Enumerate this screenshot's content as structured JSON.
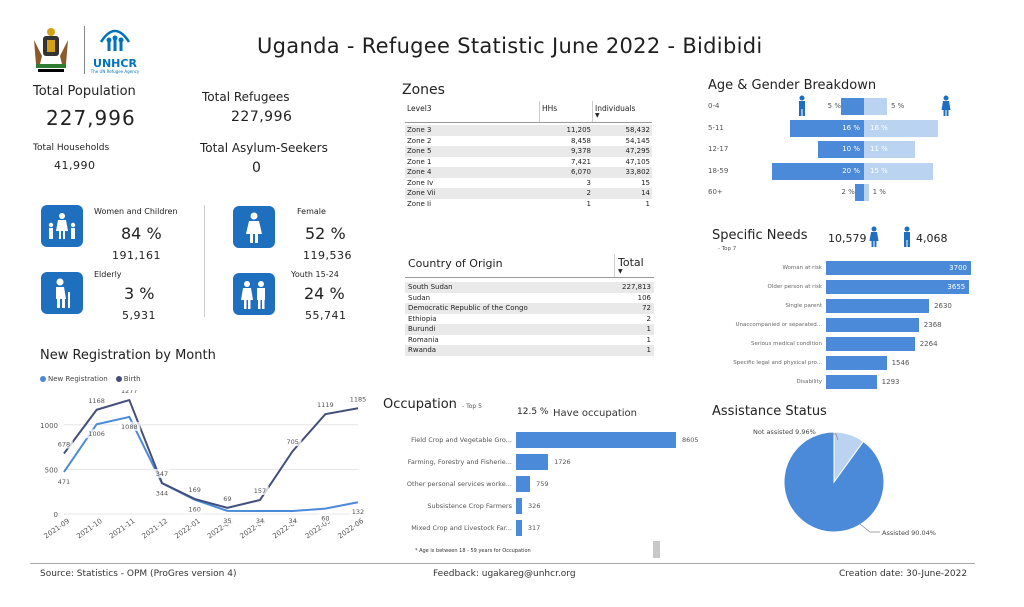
{
  "title": "Uganda - Refugee Statistic June 2022 - Bidibidi",
  "logo": {
    "unhcr_text": "UNHCR",
    "unhcr_sub": "The UN Refugee Agency"
  },
  "kpis": {
    "total_population_label": "Total Population",
    "total_population": "227,996",
    "total_refugees_label": "Total Refugees",
    "total_refugees": "227,996",
    "total_households_label": "Total Households",
    "total_households": "41,990",
    "total_asylum_label": "Total Asylum-Seekers",
    "total_asylum": "0"
  },
  "demographics": [
    {
      "label": "Women and Children",
      "pct": "84 %",
      "count": "191,161",
      "icon": "women-children-icon"
    },
    {
      "label": "Female",
      "pct": "52 %",
      "count": "119,536",
      "icon": "female-icon"
    },
    {
      "label": "Elderly",
      "pct": "3 %",
      "count": "5,931",
      "icon": "elderly-icon"
    },
    {
      "label": "Youth 15-24",
      "pct": "24 %",
      "count": "55,741",
      "icon": "youth-icon"
    }
  ],
  "zones": {
    "title": "Zones",
    "headers": [
      "Level3",
      "HHs",
      "Individuals"
    ],
    "rows": [
      [
        "Zone 3",
        "11,205",
        "58,432"
      ],
      [
        "Zone 2",
        "8,458",
        "54,145"
      ],
      [
        "Zone 5",
        "9,378",
        "47,295"
      ],
      [
        "Zone 1",
        "7,421",
        "47,105"
      ],
      [
        "Zone 4",
        "6,070",
        "33,802"
      ],
      [
        "Zone Iv",
        "3",
        "15"
      ],
      [
        "Zone Vii",
        "2",
        "14"
      ],
      [
        "Zone Ii",
        "1",
        "1"
      ]
    ]
  },
  "origin": {
    "headers": [
      "Country of Origin",
      "Total"
    ],
    "rows": [
      [
        "South Sudan",
        "227,813"
      ],
      [
        "Sudan",
        "106"
      ],
      [
        "Democratic Republic of the Congo",
        "72"
      ],
      [
        "Ethiopia",
        "2"
      ],
      [
        "Burundi",
        "1"
      ],
      [
        "Romania",
        "1"
      ],
      [
        "Rwanda",
        "1"
      ]
    ]
  },
  "age_gender": {
    "title": "Age & Gender Breakdown",
    "groups": [
      {
        "label": "0-4",
        "male": "5 %",
        "female": "5 %"
      },
      {
        "label": "5-11",
        "male": "16 %",
        "female": "16 %"
      },
      {
        "label": "12-17",
        "male": "10 %",
        "female": "11 %"
      },
      {
        "label": "18-59",
        "male": "20 %",
        "female": "15 %"
      },
      {
        "label": "60+",
        "male": "2 %",
        "female": "1 %"
      }
    ],
    "male_values": [
      5,
      16,
      10,
      20,
      2
    ],
    "female_values": [
      5,
      16,
      11,
      15,
      1
    ],
    "male_color": "#4a8ad8",
    "female_color": "#b9d3f0"
  },
  "specific_needs": {
    "title": "Specific Needs",
    "subtitle": "- Top 7",
    "female_total": "10,579",
    "male_total": "4,068",
    "items": [
      {
        "label": "Woman at risk",
        "value": 3700,
        "text": "3700"
      },
      {
        "label": "Older person at risk",
        "value": 3655,
        "text": "3655"
      },
      {
        "label": "Single parent",
        "value": 2630,
        "text": "2630"
      },
      {
        "label": "Unaccompanied or separated...",
        "value": 2368,
        "text": "2368"
      },
      {
        "label": "Serious medical condition",
        "value": 2264,
        "text": "2264"
      },
      {
        "label": "Specific legal and physical pro...",
        "value": 1546,
        "text": "1546"
      },
      {
        "label": "Disability",
        "value": 1293,
        "text": "1293"
      }
    ]
  },
  "registration": {
    "title": "New Registration by Month",
    "legend_new": "New Registration",
    "legend_birth": "Birth",
    "color_new": "#4a8ad8",
    "color_birth": "#44507a"
  },
  "chart_data": [
    {
      "type": "line",
      "title": "New Registration by Month",
      "x": [
        "2021-09",
        "2021-10",
        "2021-11",
        "2021-12",
        "2022-01",
        "2022-02",
        "2022-03",
        "2022-04",
        "2022-05",
        "2022-06"
      ],
      "series": [
        {
          "name": "New Registration",
          "values": [
            471,
            1006,
            1088,
            344,
            160,
            35,
            34,
            34,
            60,
            132
          ]
        },
        {
          "name": "Birth",
          "values": [
            678,
            1168,
            1277,
            347,
            169,
            69,
            157,
            705,
            1119,
            1185
          ]
        }
      ],
      "ylim": [
        0,
        1300
      ],
      "yticks": [
        "0",
        "500",
        "1000"
      ]
    },
    {
      "type": "bar",
      "title": "Occupation",
      "categories": [
        "Field Crop and Vegetable Gro...",
        "Farming, Forestry and Fisherie...",
        "Other personal services worke...",
        "Subsistence Crop Farmers",
        "Mixed Crop and Livestock Far..."
      ],
      "values": [
        8605,
        1726,
        759,
        326,
        317
      ]
    },
    {
      "type": "pie",
      "title": "Assistance Status",
      "categories": [
        "Assisted",
        "Not assisted"
      ],
      "values": [
        90.04,
        9.96
      ]
    }
  ],
  "occupation": {
    "title": "Occupation",
    "subtitle": "- Top 5",
    "have_pct": "12.5 %",
    "have_label": "Have occupation",
    "values_text": [
      "8605",
      "1726",
      "759",
      "326",
      "317"
    ],
    "note": "* Age is between 18 - 59 years for Occupation"
  },
  "assistance": {
    "title": "Assistance Status",
    "not_assisted_label": "Not assisted 9.96%",
    "assisted_label": "Assisted 90.04%"
  },
  "footer": {
    "source": "Source: Statistics - OPM (ProGres version 4)",
    "feedback": "Feedback: ugakareg@unhcr.org",
    "creation": "Creation date: 30-June-2022"
  }
}
